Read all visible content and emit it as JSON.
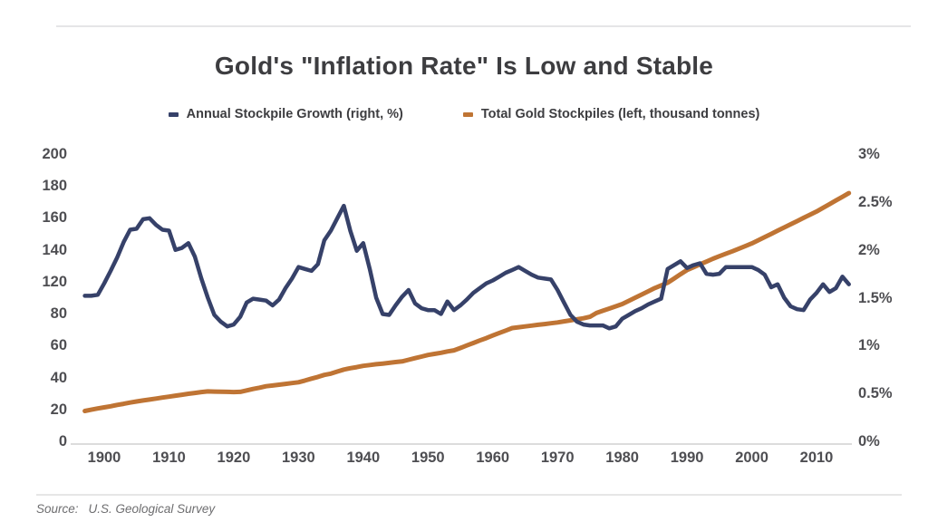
{
  "header": {
    "title": "Gold's \"Inflation Rate\" Is Low and Stable"
  },
  "footer": {
    "source_label": "Source:",
    "source_text": "U.S. Geological Survey"
  },
  "chart_data": {
    "type": "line",
    "title": "Gold's \"Inflation Rate\" Is Low and Stable",
    "legend_position": "top",
    "grid": false,
    "background": "#ffffff",
    "years": [
      1897,
      1898,
      1899,
      1900,
      1901,
      1902,
      1903,
      1904,
      1905,
      1906,
      1907,
      1908,
      1909,
      1910,
      1911,
      1912,
      1913,
      1914,
      1915,
      1916,
      1917,
      1918,
      1919,
      1920,
      1921,
      1922,
      1923,
      1924,
      1925,
      1926,
      1927,
      1928,
      1929,
      1930,
      1931,
      1932,
      1933,
      1934,
      1935,
      1936,
      1937,
      1938,
      1939,
      1940,
      1941,
      1942,
      1943,
      1944,
      1945,
      1946,
      1947,
      1948,
      1949,
      1950,
      1951,
      1952,
      1953,
      1954,
      1955,
      1956,
      1957,
      1958,
      1959,
      1960,
      1961,
      1962,
      1963,
      1964,
      1965,
      1966,
      1967,
      1968,
      1969,
      1970,
      1971,
      1972,
      1973,
      1974,
      1975,
      1976,
      1977,
      1978,
      1979,
      1980,
      1981,
      1982,
      1983,
      1984,
      1985,
      1986,
      1987,
      1988,
      1989,
      1990,
      1991,
      1992,
      1993,
      1994,
      1995,
      1996,
      1997,
      1998,
      1999,
      2000,
      2001,
      2002,
      2003,
      2004,
      2005,
      2006,
      2007,
      2008,
      2009,
      2010,
      2011,
      2012,
      2013,
      2014,
      2015
    ],
    "series": [
      {
        "name": "Annual Stockpile Growth (right, %)",
        "axis": "right",
        "unit": "%",
        "color": "#364169",
        "values": [
          1.52,
          1.52,
          1.53,
          1.65,
          1.78,
          1.92,
          2.08,
          2.21,
          2.22,
          2.32,
          2.33,
          2.26,
          2.21,
          2.2,
          2.0,
          2.02,
          2.07,
          1.93,
          1.7,
          1.5,
          1.32,
          1.25,
          1.2,
          1.22,
          1.3,
          1.45,
          1.49,
          1.48,
          1.47,
          1.42,
          1.48,
          1.6,
          1.7,
          1.82,
          1.8,
          1.78,
          1.85,
          2.1,
          2.2,
          2.33,
          2.46,
          2.2,
          1.99,
          2.07,
          1.8,
          1.5,
          1.33,
          1.32,
          1.42,
          1.51,
          1.58,
          1.44,
          1.39,
          1.37,
          1.37,
          1.33,
          1.46,
          1.37,
          1.42,
          1.48,
          1.55,
          1.6,
          1.65,
          1.68,
          1.72,
          1.76,
          1.79,
          1.82,
          1.78,
          1.74,
          1.71,
          1.7,
          1.69,
          1.58,
          1.45,
          1.32,
          1.25,
          1.22,
          1.21,
          1.21,
          1.21,
          1.18,
          1.2,
          1.28,
          1.32,
          1.36,
          1.39,
          1.43,
          1.46,
          1.49,
          1.8,
          1.84,
          1.88,
          1.81,
          1.84,
          1.86,
          1.75,
          1.74,
          1.75,
          1.82,
          1.82,
          1.82,
          1.82,
          1.82,
          1.79,
          1.74,
          1.61,
          1.64,
          1.5,
          1.41,
          1.38,
          1.37,
          1.48,
          1.55,
          1.64,
          1.56,
          1.6,
          1.72,
          1.64
        ]
      },
      {
        "name": "Total Gold Stockpiles (left, thousand tonnes)",
        "axis": "left",
        "unit": "thousand tonnes",
        "color": "#bf7434",
        "values": [
          19.0,
          19.8,
          20.6,
          21.3,
          22.0,
          22.8,
          23.5,
          24.3,
          25.0,
          25.6,
          26.2,
          26.8,
          27.4,
          28.0,
          28.6,
          29.2,
          29.8,
          30.3,
          30.9,
          31.3,
          31.2,
          31.1,
          31.0,
          30.9,
          31.0,
          31.9,
          32.8,
          33.6,
          34.5,
          35.0,
          35.5,
          36.0,
          36.5,
          37.0,
          38.1,
          39.3,
          40.4,
          41.6,
          42.4,
          43.7,
          45.0,
          45.8,
          46.5,
          47.3,
          47.8,
          48.3,
          48.7,
          49.2,
          49.7,
          50.1,
          51.1,
          52.1,
          53.1,
          54.1,
          54.8,
          55.5,
          56.3,
          57.0,
          58.5,
          60.1,
          61.6,
          63.2,
          64.7,
          66.3,
          67.9,
          69.4,
          71.0,
          71.5,
          72.0,
          72.5,
          73.0,
          73.5,
          74.0,
          74.5,
          75.2,
          75.8,
          76.5,
          77.1,
          78.0,
          80.8,
          83.6,
          86.4,
          89.2,
          92.0,
          96.0,
          100.0,
          104.0,
          108.0,
          112.0,
          115.3,
          118.7,
          122.0,
          124.7,
          127.3,
          129.1,
          130.9,
          132.6,
          134.4,
          136.0,
          137.6,
          139.1,
          140.7,
          142.3,
          144.0,
          146.0,
          148.0,
          150.0,
          152.0,
          154.0,
          156.0,
          158.0,
          160.0,
          162.0,
          164.0,
          166.3,
          168.6,
          170.9,
          173.2,
          175.5
        ]
      }
    ],
    "left_axis": {
      "title": "thousand tonnes",
      "tick_labels_top_to_bottom": [
        "200",
        "180",
        "160",
        "140",
        "120",
        "80",
        "60",
        "40",
        "20",
        "0"
      ],
      "scale_values_ascending": [
        0,
        20,
        40,
        60,
        80,
        120,
        140,
        160,
        180,
        200
      ]
    },
    "right_axis": {
      "title": "%",
      "tick_labels_top_to_bottom": [
        "3%",
        "2.5%",
        "2%",
        "1.5%",
        "1%",
        "0.5%",
        "0%"
      ],
      "min": 0,
      "max": 3
    },
    "x_axis": {
      "tick_values": [
        1900,
        1910,
        1920,
        1930,
        1940,
        1950,
        1960,
        1970,
        1980,
        1990,
        2000,
        2010
      ],
      "axis_line_color": "#dcdcdc"
    }
  }
}
